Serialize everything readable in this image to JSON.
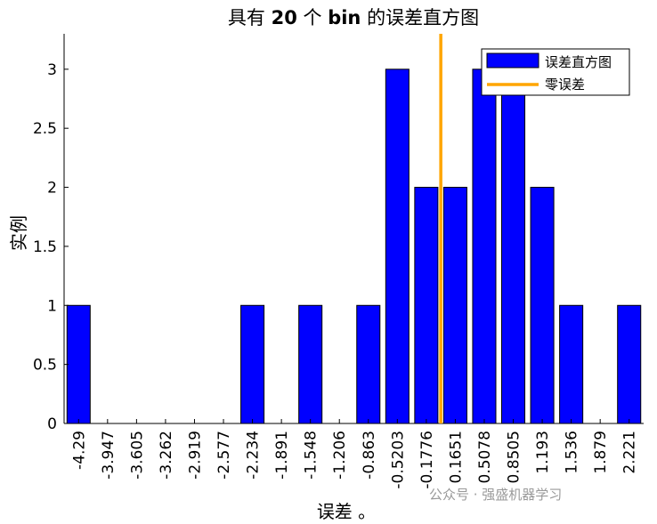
{
  "chart_data": {
    "type": "bar",
    "title_parts": [
      "具有 ",
      "20",
      " 个 ",
      "bin",
      " 的误差直方图"
    ],
    "xlabel": "误差 。",
    "ylabel": "实例",
    "categories": [
      "-4.29",
      "-3.947",
      "-3.605",
      "-3.262",
      "-2.919",
      "-2.577",
      "-2.234",
      "-1.891",
      "-1.548",
      "-1.206",
      "-0.863",
      "-0.5203",
      "-0.1776",
      "0.1651",
      "0.5078",
      "0.8505",
      "1.193",
      "1.536",
      "1.879",
      "2.221"
    ],
    "values": [
      1,
      0,
      0,
      0,
      0,
      0,
      1,
      0,
      1,
      0,
      1,
      3,
      2,
      2,
      3,
      3,
      2,
      1,
      0,
      1
    ],
    "ylim": [
      0,
      3.3
    ],
    "yticks": [
      "0",
      "0.5",
      "1",
      "1.5",
      "2",
      "2.5",
      "3"
    ],
    "zero_error_x": -0.0062,
    "legend": {
      "position": "top-right",
      "entries": [
        {
          "label": "误差直方图",
          "color": "#0000ff"
        },
        {
          "label": "零误差",
          "color": "#ffa500"
        }
      ]
    },
    "colors": {
      "bar": "#0000ff",
      "zero_line": "#ffa500"
    }
  },
  "watermark": "公众号 · 强盛机器学习"
}
